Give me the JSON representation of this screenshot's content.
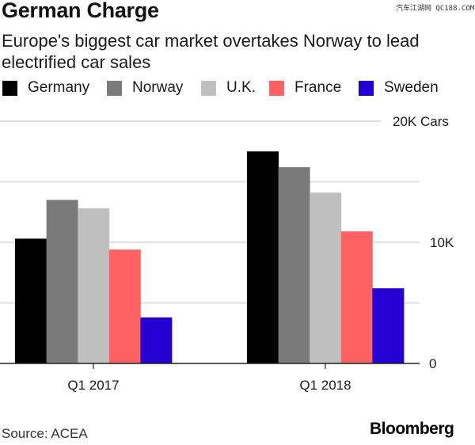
{
  "header": {
    "title": "German Charge",
    "subtitle": "Europe's biggest car market overtakes Norway to lead electrified car sales",
    "watermark": "汽车江湖网 QC188.COM"
  },
  "footer": {
    "source": "Source: ACEA",
    "brand": "Bloomberg"
  },
  "chart_data": {
    "type": "bar",
    "title": "German Charge",
    "subtitle": "Europe's biggest car market overtakes Norway to lead electrified car sales",
    "xlabel": "",
    "ylabel": "Cars",
    "categories": [
      "Q1 2017",
      "Q1 2018"
    ],
    "series": [
      {
        "name": "Germany",
        "color": "#000000",
        "values": [
          10300,
          17500
        ]
      },
      {
        "name": "Norway",
        "color": "#7a7a7a",
        "values": [
          13500,
          16200
        ]
      },
      {
        "name": "U.K.",
        "color": "#c0c0c0",
        "values": [
          12800,
          14100
        ]
      },
      {
        "name": "France",
        "color": "#ff6262",
        "values": [
          9400,
          10900
        ]
      },
      {
        "name": "Sweden",
        "color": "#2400d2",
        "values": [
          3800,
          6200
        ]
      }
    ],
    "ylim": [
      0,
      20000
    ],
    "yticks": [
      {
        "value": 0,
        "label": "0"
      },
      {
        "value": 5000,
        "label": ""
      },
      {
        "value": 10000,
        "label": "10K"
      },
      {
        "value": 15000,
        "label": ""
      },
      {
        "value": 20000,
        "label": "20K Cars"
      }
    ],
    "grid": true,
    "legend_position": "top-left",
    "source": "Source: ACEA"
  }
}
